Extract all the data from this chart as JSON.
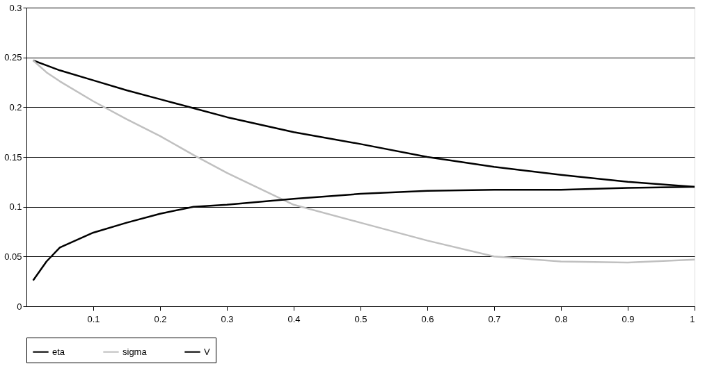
{
  "chart_data": {
    "type": "line",
    "x": [
      0.01,
      0.03,
      0.05,
      0.1,
      0.15,
      0.2,
      0.25,
      0.3,
      0.4,
      0.5,
      0.6,
      0.7,
      0.8,
      0.9,
      1.0
    ],
    "series": [
      {
        "name": "eta",
        "color": "#000000",
        "values": [
          0.247,
          0.242,
          0.237,
          0.227,
          0.217,
          0.208,
          0.199,
          0.19,
          0.175,
          0.163,
          0.15,
          0.14,
          0.132,
          0.125,
          0.12
        ]
      },
      {
        "name": "sigma",
        "color": "#c0c0c0",
        "values": [
          0.247,
          0.235,
          0.226,
          0.206,
          0.188,
          0.171,
          0.152,
          0.134,
          0.102,
          0.084,
          0.066,
          0.05,
          0.045,
          0.044,
          0.047
        ]
      },
      {
        "name": "V",
        "color": "#000000",
        "values": [
          0.026,
          0.045,
          0.059,
          0.074,
          0.084,
          0.093,
          0.1,
          0.102,
          0.108,
          0.113,
          0.116,
          0.117,
          0.117,
          0.119,
          0.12
        ]
      }
    ],
    "xlim": [
      0,
      1
    ],
    "xticks": [
      0.1,
      0.2,
      0.3,
      0.4,
      0.5,
      0.6,
      0.7,
      0.8,
      0.9,
      1
    ],
    "ylim": [
      0,
      0.3
    ],
    "yticks": [
      0,
      0.05,
      0.1,
      0.15,
      0.2,
      0.25,
      0.3
    ],
    "grid": "y",
    "legend": "bottom",
    "marker": "none",
    "line_style": "solid"
  }
}
